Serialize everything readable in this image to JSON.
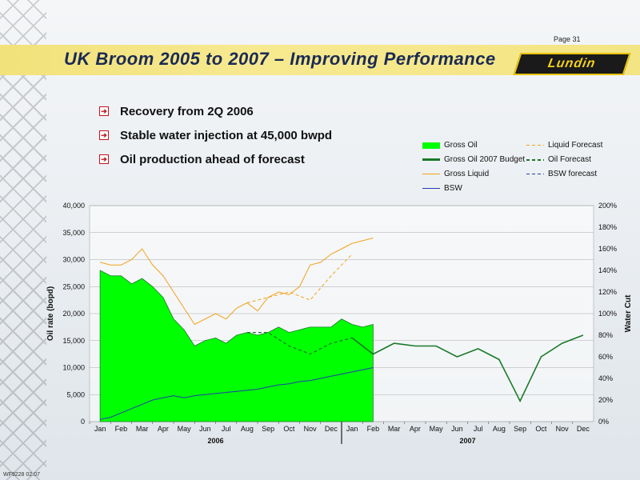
{
  "page_number": "Page 31",
  "title": "UK Broom 2005 to 2007 – Improving Performance",
  "logo_text": "Lundin",
  "bullets": [
    "Recovery from 2Q 2006",
    "Stable water injection at 45,000 bwpd",
    "Oil production ahead of forecast"
  ],
  "footer_code": "WF9228 02.07",
  "colors": {
    "gross_oil": "#00ff00",
    "budget": "#1a7a2a",
    "liquid": "#f2a31a",
    "bsw": "#1f3fa8",
    "accent": "#1a2a55",
    "bullet": "#c0141a"
  },
  "chart_data": {
    "type": "area",
    "title": "",
    "ylabel": "Oil rate (bopd)",
    "y2label": "Water Cut",
    "ylim": [
      0,
      40000
    ],
    "y2lim": [
      0,
      200
    ],
    "yticks": [
      "0",
      "5,000",
      "10,000",
      "15,000",
      "20,000",
      "25,000",
      "30,000",
      "35,000",
      "40,000"
    ],
    "y2ticks": [
      "0%",
      "20%",
      "40%",
      "60%",
      "80%",
      "100%",
      "120%",
      "140%",
      "160%",
      "180%",
      "200%"
    ],
    "xticks": [
      "Jan",
      "Feb",
      "Mar",
      "Apr",
      "May",
      "Jun",
      "Jul",
      "Aug",
      "Sep",
      "Oct",
      "Nov",
      "Dec",
      "Jan",
      "Feb",
      "Mar",
      "Apr",
      "May",
      "Jun",
      "Jul",
      "Aug",
      "Sep",
      "Oct",
      "Nov",
      "Dec"
    ],
    "year_labels": [
      "2006",
      "2007"
    ],
    "legend": {
      "gross_oil": "Gross Oil",
      "budget": "Gross Oil 2007 Budget",
      "liquid": "Gross Liquid",
      "bsw": "BSW",
      "liquid_forecast": "Liquid Forecast",
      "oil_forecast": "Oil Forecast",
      "bsw_forecast": "BSW forecast"
    },
    "x_month_index": [
      0,
      0.5,
      1,
      1.5,
      2,
      2.5,
      3,
      3.5,
      4,
      4.5,
      5,
      5.5,
      6,
      6.5,
      7,
      7.5,
      8,
      8.5,
      9,
      9.5,
      10,
      10.5,
      11,
      11.5,
      12,
      12.5,
      13
    ],
    "series": [
      {
        "name": "Gross Oil",
        "x": [
          0,
          0.5,
          1,
          1.5,
          2,
          2.5,
          3,
          3.5,
          4,
          4.5,
          5,
          5.5,
          6,
          6.5,
          7,
          7.5,
          8,
          8.5,
          9,
          9.5,
          10,
          10.5,
          11,
          11.5,
          12,
          12.5,
          13
        ],
        "values": [
          28000,
          27000,
          27000,
          25500,
          26500,
          25000,
          23000,
          19000,
          17000,
          14000,
          15000,
          15500,
          14500,
          16000,
          16500,
          16000,
          16500,
          17500,
          16500,
          17000,
          17500,
          17500,
          17500,
          19000,
          18000,
          17500,
          18000
        ]
      },
      {
        "name": "Gross Liquid",
        "x": [
          0,
          0.5,
          1,
          1.5,
          2,
          2.5,
          3,
          3.5,
          4,
          4.5,
          5,
          5.5,
          6,
          6.5,
          7,
          7.5,
          8,
          8.5,
          9,
          9.5,
          10,
          10.5,
          11,
          11.5,
          12,
          12.5,
          13
        ],
        "values": [
          29500,
          29000,
          29000,
          30000,
          32000,
          29000,
          27000,
          24000,
          21000,
          18000,
          19000,
          20000,
          19000,
          21000,
          22000,
          20500,
          23000,
          24000,
          23500,
          25000,
          29000,
          29500,
          31000,
          32000,
          33000,
          33500,
          34000
        ]
      },
      {
        "name": "BSW",
        "x": [
          0,
          0.5,
          1,
          1.5,
          2,
          2.5,
          3,
          3.5,
          4,
          4.5,
          5,
          5.5,
          6,
          6.5,
          7,
          7.5,
          8,
          8.5,
          9,
          9.5,
          10,
          10.5,
          11,
          11.5,
          12,
          12.5,
          13
        ],
        "values": [
          2,
          4,
          8,
          12,
          16,
          20,
          22,
          24,
          22,
          24,
          25,
          26,
          27,
          28,
          29,
          30,
          32,
          34,
          35,
          37,
          38,
          40,
          42,
          44,
          46,
          48,
          50
        ]
      },
      {
        "name": "Gross Oil 2007 Budget",
        "x": [
          12,
          13,
          14,
          15,
          16,
          17,
          18,
          19,
          20,
          21,
          22,
          23
        ],
        "values": [
          15500,
          12500,
          14500,
          14000,
          14000,
          12000,
          13500,
          11500,
          3800,
          12000,
          14500,
          16000
        ]
      },
      {
        "name": "Oil Forecast",
        "x": [
          7,
          8,
          9,
          10,
          11,
          12
        ],
        "values": [
          16500,
          16500,
          14000,
          12500,
          14500,
          15500
        ]
      },
      {
        "name": "Liquid Forecast",
        "x": [
          7,
          8,
          9,
          10,
          11,
          12
        ],
        "values": [
          22000,
          23000,
          24000,
          22500,
          27000,
          31000
        ]
      }
    ]
  }
}
